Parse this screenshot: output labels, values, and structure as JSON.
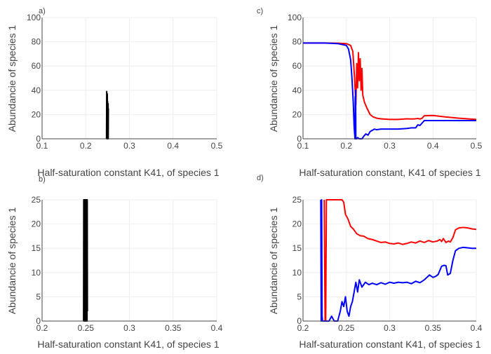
{
  "chart_data": [
    {
      "id": "a",
      "panel_label": "a)",
      "type": "line",
      "xlabel": "Half-saturation constant K41,  of species 1",
      "ylabel": "Abundancie of species 1",
      "xlim": [
        0.1,
        0.5
      ],
      "ylim": [
        0,
        100
      ],
      "xticks": [
        0.1,
        0.2,
        0.3,
        0.4,
        0.5
      ],
      "xtick_labels": [
        "0.1",
        "0.2",
        "0.3",
        "0.4",
        "0.5"
      ],
      "yticks": [
        0,
        20,
        40,
        60,
        80,
        100
      ],
      "ytick_labels": [
        "0",
        "20",
        "40",
        "60",
        "80",
        "100"
      ],
      "grid": true,
      "series": [
        {
          "color": "#000000",
          "x": [
            0.2475,
            0.248,
            0.2484,
            0.2488,
            0.2491,
            0.2494,
            0.2497,
            0.25,
            0.2503,
            0.2506,
            0.2509,
            0.2512,
            0.2515,
            0.2518
          ],
          "y": [
            0,
            39,
            0,
            33,
            0,
            37,
            0,
            31,
            0,
            27,
            0,
            29,
            0,
            25
          ]
        }
      ]
    },
    {
      "id": "c",
      "panel_label": "c)",
      "type": "line",
      "xlabel": "Half-saturation constant, K41 of species 1",
      "ylabel": "Abundancie of species 1",
      "xlim": [
        0.1,
        0.5
      ],
      "ylim": [
        0,
        100
      ],
      "xticks": [
        0.1,
        0.2,
        0.3,
        0.4,
        0.5
      ],
      "xtick_labels": [
        "0.1",
        "0.2",
        "0.3",
        "0.4",
        "0.5"
      ],
      "yticks": [
        0,
        20,
        40,
        60,
        80,
        100
      ],
      "ytick_labels": [
        "0",
        "20",
        "40",
        "60",
        "80",
        "100"
      ],
      "grid": true,
      "series": [
        {
          "color": "#ff0000",
          "x": [
            0.1,
            0.15,
            0.18,
            0.2,
            0.21,
            0.215,
            0.219,
            0.222,
            0.224,
            0.226,
            0.228,
            0.23,
            0.232,
            0.234,
            0.236,
            0.238,
            0.242,
            0.248,
            0.255,
            0.262,
            0.27,
            0.28,
            0.3,
            0.32,
            0.34,
            0.35,
            0.36,
            0.365,
            0.37,
            0.375,
            0.38,
            0.4,
            0.43,
            0.46,
            0.5
          ],
          "y": [
            79,
            79,
            78.8,
            78.5,
            77,
            72,
            50,
            28,
            62,
            42,
            71,
            48,
            66,
            40,
            58,
            36,
            30,
            25,
            20,
            18,
            17,
            16.5,
            16,
            16,
            16.5,
            16.3,
            16.5,
            16.8,
            16.3,
            17,
            19,
            19.2,
            18,
            17,
            16
          ]
        },
        {
          "color": "#0000ff",
          "x": [
            0.1,
            0.15,
            0.18,
            0.2,
            0.205,
            0.21,
            0.213,
            0.216,
            0.218,
            0.22,
            0.2205,
            0.221,
            0.2215,
            0.222,
            0.224,
            0.226,
            0.23,
            0.236,
            0.24,
            0.245,
            0.25,
            0.255,
            0.26,
            0.265,
            0.27,
            0.28,
            0.3,
            0.32,
            0.34,
            0.35,
            0.36,
            0.365,
            0.37,
            0.375,
            0.38,
            0.4,
            0.45,
            0.5
          ],
          "y": [
            79,
            79,
            78.5,
            77,
            74,
            65,
            50,
            30,
            10,
            0,
            35,
            0,
            40,
            0,
            0,
            1,
            0,
            0,
            2,
            4,
            3,
            6,
            7,
            8,
            7.5,
            8,
            8,
            8,
            8.5,
            9,
            9,
            11.5,
            11,
            13,
            15,
            15,
            15,
            15
          ]
        }
      ]
    },
    {
      "id": "b",
      "panel_label": "b)",
      "type": "line",
      "xlabel": "Half-saturation constant K41, of species 1",
      "ylabel": "Abundancie of species 1",
      "xlim": [
        0.2,
        0.4
      ],
      "ylim": [
        0,
        25
      ],
      "xticks": [
        0.2,
        0.25,
        0.3,
        0.35,
        0.4
      ],
      "xtick_labels": [
        "0.2",
        "0.25",
        "0.3",
        "0.35",
        "0.4"
      ],
      "yticks": [
        0,
        5,
        10,
        15,
        20,
        25
      ],
      "ytick_labels": [
        "0",
        "5",
        "10",
        "15",
        "20",
        "25"
      ],
      "grid": true,
      "series": [
        {
          "color": "#000000",
          "x": [
            0.2475,
            0.2477,
            0.2479,
            0.2481,
            0.2483,
            0.2485,
            0.2487,
            0.2489,
            0.2491,
            0.2493,
            0.2495,
            0.2497,
            0.2499,
            0.2501,
            0.2503,
            0.2505,
            0.2507,
            0.2509,
            0.2511,
            0.2513,
            0.2515,
            0.2517,
            0.2519
          ],
          "y": [
            0,
            25,
            0,
            25,
            0,
            25,
            0,
            25,
            0,
            25,
            0,
            25,
            0,
            25,
            0,
            25,
            0,
            25,
            0,
            25,
            0,
            25,
            2
          ]
        }
      ]
    },
    {
      "id": "d",
      "panel_label": "d)",
      "type": "line",
      "xlabel": "Half-saturation constant K41, of species 1",
      "ylabel": "Abundancie of species 1",
      "xlim": [
        0.2,
        0.4
      ],
      "ylim": [
        0,
        25
      ],
      "xticks": [
        0.2,
        0.25,
        0.3,
        0.35,
        0.4
      ],
      "xtick_labels": [
        "0.2",
        "0.25",
        "0.3",
        "0.35",
        "0.4"
      ],
      "yticks": [
        0,
        5,
        10,
        15,
        20,
        25
      ],
      "ytick_labels": [
        "0",
        "5",
        "10",
        "15",
        "20",
        "25"
      ],
      "grid": true,
      "series": [
        {
          "color": "#ff0000",
          "x": [
            0.2245,
            0.2255,
            0.2262,
            0.227,
            0.245,
            0.247,
            0.249,
            0.252,
            0.255,
            0.258,
            0.262,
            0.266,
            0.27,
            0.275,
            0.28,
            0.285,
            0.29,
            0.295,
            0.3,
            0.305,
            0.31,
            0.315,
            0.32,
            0.325,
            0.33,
            0.335,
            0.34,
            0.345,
            0.35,
            0.355,
            0.358,
            0.36,
            0.362,
            0.365,
            0.368,
            0.37,
            0.373,
            0.376,
            0.38,
            0.385,
            0.39,
            0.395,
            0.4
          ],
          "y": [
            25,
            0,
            0,
            25,
            25,
            24.5,
            22,
            21,
            19.5,
            19,
            18,
            17.6,
            17.5,
            17,
            16.8,
            16.5,
            16.2,
            16.3,
            16,
            15.9,
            16.1,
            15.8,
            16,
            16.3,
            16.1,
            16.5,
            16.2,
            16.6,
            16.3,
            16.5,
            16.8,
            16.4,
            17,
            16.2,
            16.5,
            16.3,
            17.2,
            18.8,
            19.2,
            19.3,
            19.2,
            19,
            18.9
          ]
        },
        {
          "color": "#0000ff",
          "x": [
            0.2205,
            0.221,
            0.2215,
            0.222,
            0.2225,
            0.224,
            0.226,
            0.23,
            0.233,
            0.236,
            0.24,
            0.243,
            0.245,
            0.247,
            0.249,
            0.251,
            0.253,
            0.255,
            0.257,
            0.259,
            0.261,
            0.263,
            0.265,
            0.268,
            0.272,
            0.276,
            0.28,
            0.285,
            0.29,
            0.295,
            0.3,
            0.305,
            0.31,
            0.315,
            0.32,
            0.325,
            0.33,
            0.335,
            0.34,
            0.343,
            0.346,
            0.35,
            0.353,
            0.356,
            0.36,
            0.363,
            0.365,
            0.367,
            0.37,
            0.373,
            0.376,
            0.38,
            0.385,
            0.39,
            0.395,
            0.4
          ],
          "y": [
            25,
            0,
            25,
            1,
            0,
            0,
            0,
            0,
            1,
            0,
            0,
            2,
            4,
            3,
            5,
            2,
            1,
            3,
            4,
            6,
            8,
            6,
            8.5,
            7,
            8,
            7.5,
            7.8,
            7.5,
            7.9,
            7.6,
            8,
            7.8,
            8,
            7.9,
            8,
            7.7,
            8.2,
            7.9,
            8.5,
            9,
            9.5,
            9,
            9.2,
            9.6,
            11.3,
            11.5,
            11.4,
            9.5,
            9.8,
            12.5,
            14.5,
            15,
            15.2,
            15.1,
            15,
            15
          ]
        }
      ]
    }
  ]
}
